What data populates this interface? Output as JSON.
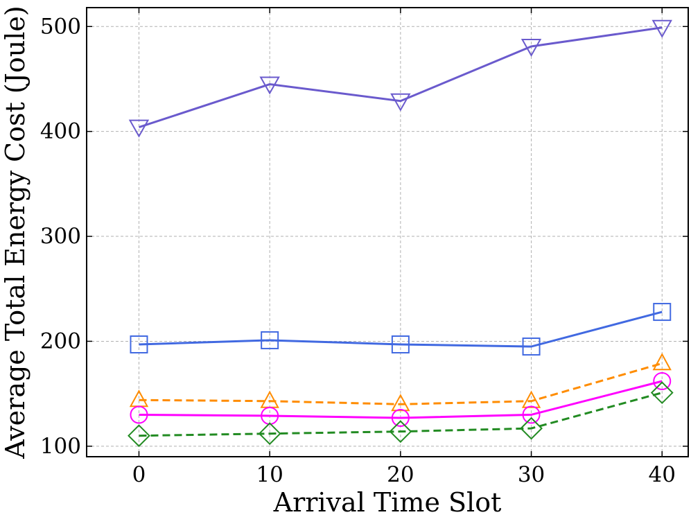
{
  "chart_data": {
    "type": "line",
    "title": "",
    "xlabel": "Arrival Time Slot",
    "ylabel": "Average Total Energy Cost (Joule)",
    "x": [
      0,
      10,
      20,
      30,
      40
    ],
    "xlim": [
      -4,
      42
    ],
    "ylim": [
      90,
      518
    ],
    "xticks": [
      0,
      10,
      20,
      30,
      40
    ],
    "yticks": [
      100,
      200,
      300,
      400,
      500
    ],
    "xtick_labels": [
      "0",
      "10",
      "20",
      "30",
      "40"
    ],
    "ytick_labels": [
      "100",
      "200",
      "300",
      "400",
      "500"
    ],
    "grid": true,
    "series": [
      {
        "name": "series-purple-down-triangle",
        "color": "#6a5acd",
        "dash": "solid",
        "marker": "triangle-down",
        "values": [
          404,
          445,
          429,
          481,
          499
        ]
      },
      {
        "name": "series-blue-square",
        "color": "#4169e1",
        "dash": "solid",
        "marker": "square",
        "values": [
          197,
          201,
          197,
          195,
          228
        ]
      },
      {
        "name": "series-orange-up-triangle",
        "color": "#ff8c00",
        "dash": "dashed",
        "marker": "triangle-up",
        "values": [
          144,
          143,
          140,
          143,
          179
        ]
      },
      {
        "name": "series-magenta-circle",
        "color": "#ff00ff",
        "dash": "solid",
        "marker": "circle",
        "values": [
          130,
          129,
          127,
          130,
          162
        ]
      },
      {
        "name": "series-green-diamond",
        "color": "#228b22",
        "dash": "dashed",
        "marker": "diamond",
        "values": [
          110,
          112,
          114,
          117,
          151
        ]
      }
    ]
  }
}
